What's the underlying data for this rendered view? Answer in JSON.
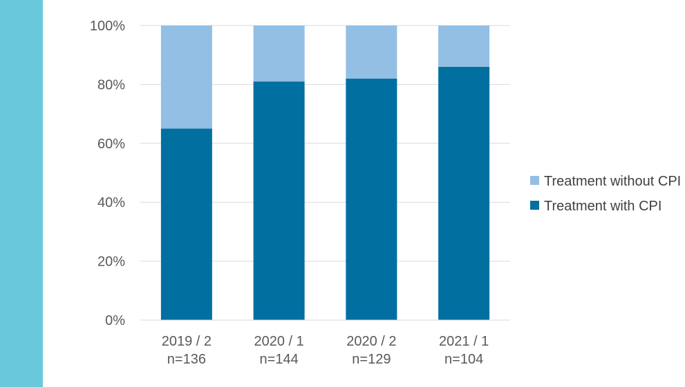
{
  "colors": {
    "side_band": "#6ac8dc",
    "series_with": "#016fa0",
    "series_without": "#92bfe3",
    "grid": "#d9d9d9"
  },
  "chart_data": {
    "type": "bar",
    "stacked": true,
    "categories": [
      [
        "2019 / 2",
        "n=136"
      ],
      [
        "2020 / 1",
        "n=144"
      ],
      [
        "2020 / 2",
        "n=129"
      ],
      [
        "2021 / 1",
        "n=104"
      ]
    ],
    "series": [
      {
        "name": "Treatment with CPI",
        "values": [
          65,
          81,
          82,
          86
        ]
      },
      {
        "name": "Treatment without CPI",
        "values": [
          35,
          19,
          18,
          14
        ]
      }
    ],
    "ylim": [
      0,
      100
    ],
    "yticks": [
      "0%",
      "20%",
      "40%",
      "60%",
      "80%",
      "100%"
    ],
    "grid": true,
    "legend_position": "right",
    "legend_order": [
      "Treatment without CPI",
      "Treatment with CPI"
    ]
  }
}
